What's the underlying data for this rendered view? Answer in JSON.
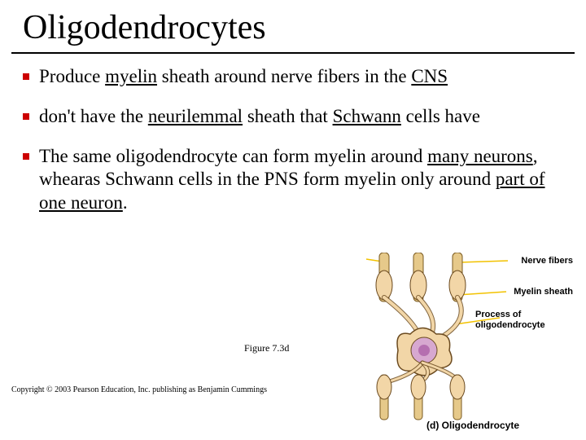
{
  "title": "Oligodendrocytes",
  "bullets": [
    {
      "pre": "Produce ",
      "u1": "myelin",
      "mid": " sheath around nerve fibers in the ",
      "u2": "CNS",
      "post": ""
    },
    {
      "pre": "don't have the ",
      "u1": "neurilemmal",
      "mid": " sheath that ",
      "u2": "Schwann",
      "post": " cells have"
    },
    {
      "pre": "The same oligodendrocyte can form myelin around ",
      "u1": "many neurons",
      "mid": ", whearas Schwann cells in the PNS form myelin only around ",
      "u2": "part of one neuron",
      "post": "."
    }
  ],
  "caption": "Figure 7.3d",
  "copyright": "Copyright © 2003 Pearson Education, Inc. publishing as Benjamin Cummings",
  "figure": {
    "labels": {
      "nerve": "Nerve fibers",
      "myelin": "Myelin sheath",
      "process": "Process of oligodendrocyte",
      "caption": "(d) Oligodendrocyte"
    },
    "colors": {
      "cell_fill": "#f2d6a7",
      "cell_stroke": "#6b4a1f",
      "nucleus_outer": "#d7a8d0",
      "nucleus_inner": "#b56fb0",
      "axon_fill": "#e6c98a",
      "axon_stroke": "#7a5a20",
      "pointer": "#f2c200",
      "bg": "#ffffff"
    }
  }
}
